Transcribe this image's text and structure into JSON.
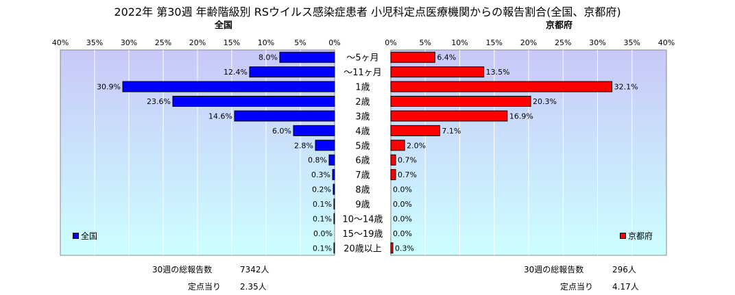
{
  "title": "2022年 第30週 年齢階級別 RSウイルス感染症患者 小児科定点医療機関からの報告割合(全国、京都府)",
  "colors": {
    "nation": "#0000FF",
    "kyoto": "#FF0000",
    "plot_bg_top": "#C8C8F8",
    "plot_bg_bottom": "#CCFFFF"
  },
  "chart_data": [
    {
      "type": "bar",
      "orientation": "horizontal",
      "title": "全国",
      "legend": "全国",
      "legend_position": "bottom-left",
      "x_direction": "reversed",
      "xlim": [
        0,
        40
      ],
      "tick_labels": [
        "0%",
        "5%",
        "10%",
        "15%",
        "20%",
        "25%",
        "30%",
        "35%",
        "40%"
      ],
      "categories": [
        "～5ヶ月",
        "～11ヶ月",
        "1歳",
        "2歳",
        "3歳",
        "4歳",
        "5歳",
        "6歳",
        "7歳",
        "8歳",
        "9歳",
        "10～14歳",
        "15～19歳",
        "20歳以上"
      ],
      "values": [
        8.0,
        12.4,
        30.9,
        23.6,
        14.6,
        6.0,
        2.8,
        0.8,
        0.3,
        0.2,
        0.1,
        0.1,
        0.0,
        0.1
      ],
      "labels": [
        "8.0%",
        "12.4%",
        "30.9%",
        "23.6%",
        "14.6%",
        "6.0%",
        "2.8%",
        "0.8%",
        "0.3%",
        "0.2%",
        "0.1%",
        "0.1%",
        "0.0%",
        "0.1%"
      ]
    },
    {
      "type": "bar",
      "orientation": "horizontal",
      "title": "京都府",
      "legend": "京都府",
      "legend_position": "bottom-right",
      "xlim": [
        0,
        40
      ],
      "tick_labels": [
        "0%",
        "5%",
        "10%",
        "15%",
        "20%",
        "25%",
        "30%",
        "35%",
        "40%"
      ],
      "categories": [
        "～5ヶ月",
        "～11ヶ月",
        "1歳",
        "2歳",
        "3歳",
        "4歳",
        "5歳",
        "6歳",
        "7歳",
        "8歳",
        "9歳",
        "10～14歳",
        "15～19歳",
        "20歳以上"
      ],
      "values": [
        6.4,
        13.5,
        32.1,
        20.3,
        16.9,
        7.1,
        2.0,
        0.7,
        0.7,
        0.0,
        0.0,
        0.0,
        0.0,
        0.3
      ],
      "labels": [
        "6.4%",
        "13.5%",
        "32.1%",
        "20.3%",
        "16.9%",
        "7.1%",
        "2.0%",
        "0.7%",
        "0.7%",
        "0.0%",
        "0.0%",
        "0.0%",
        "0.0%",
        "0.3%"
      ]
    }
  ],
  "footer": {
    "nation_reports_label": "30週の総報告数",
    "nation_reports_value": "7342人",
    "nation_per_site_label": "定点当り",
    "nation_per_site_value": "2.35人",
    "kyoto_reports_label": "30週の総報告数",
    "kyoto_reports_value": "296人",
    "kyoto_per_site_label": "定点当り",
    "kyoto_per_site_value": "4.17人"
  }
}
